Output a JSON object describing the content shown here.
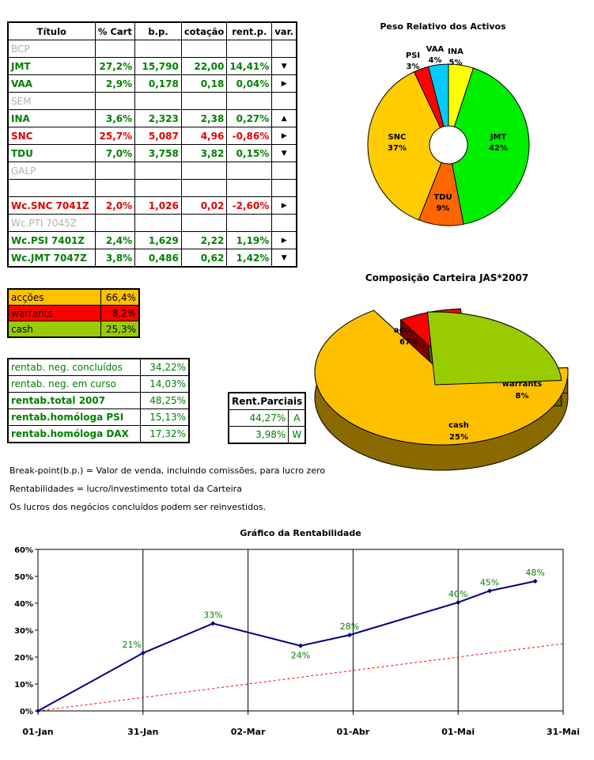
{
  "table": {
    "headers": [
      "Título",
      "% Cart",
      "b.p.",
      "cotação",
      "rent.p.",
      "var."
    ],
    "rows": [
      {
        "name": "BCP",
        "cart": "",
        "bp": "",
        "cot": "",
        "rent": "",
        "var": "",
        "style": "grey"
      },
      {
        "name": "JMT",
        "cart": "27,2%",
        "bp": "15,790",
        "cot": "22,00",
        "rent": "14,41%",
        "var": "down",
        "style": "green"
      },
      {
        "name": "VAA",
        "cart": "2,9%",
        "bp": "0,178",
        "cot": "0,18",
        "rent": "0,04%",
        "var": "right",
        "style": "green"
      },
      {
        "name": "SEM",
        "cart": "",
        "bp": "",
        "cot": "",
        "rent": "",
        "var": "",
        "style": "grey"
      },
      {
        "name": "INA",
        "cart": "3,6%",
        "bp": "2,323",
        "cot": "2,38",
        "rent": "0,27%",
        "var": "up",
        "style": "green"
      },
      {
        "name": "SNC",
        "cart": "25,7%",
        "bp": "5,087",
        "cot": "4,96",
        "rent": "-0,86%",
        "var": "right",
        "style": "red"
      },
      {
        "name": "TDU",
        "cart": "7,0%",
        "bp": "3,758",
        "cot": "3,82",
        "rent": "0,15%",
        "var": "down",
        "style": "green"
      },
      {
        "name": "GALP",
        "cart": "",
        "bp": "",
        "cot": "",
        "rent": "",
        "var": "",
        "style": "grey"
      },
      {
        "name": "",
        "cart": "",
        "bp": "",
        "cot": "",
        "rent": "",
        "var": "",
        "style": "grey"
      },
      {
        "name": "Wc.SNC 7041Z",
        "cart": "2,0%",
        "bp": "1,026",
        "cot": "0,02",
        "rent": "-2,60%",
        "var": "right",
        "style": "red"
      },
      {
        "name": "Wc.PTI 7045Z",
        "cart": "",
        "bp": "",
        "cot": "",
        "rent": "",
        "var": "",
        "style": "grey"
      },
      {
        "name": "Wc.PSI 7401Z",
        "cart": "2,4%",
        "bp": "1,629",
        "cot": "2,22",
        "rent": "1,19%",
        "var": "right",
        "style": "green"
      },
      {
        "name": "Wc.JMT 7047Z",
        "cart": "3,8%",
        "bp": "0,486",
        "cot": "0,62",
        "rent": "1,42%",
        "var": "down",
        "style": "green"
      }
    ]
  },
  "allocation": [
    {
      "label": "acções",
      "value": "66,4%",
      "color": "#ffc000"
    },
    {
      "label": "warrants",
      "value": "8,2%",
      "color": "#ff0000"
    },
    {
      "label": "cash",
      "value": "25,3%",
      "color": "#99cc00"
    }
  ],
  "rentab": [
    {
      "label": "rentab. neg. concluídos",
      "value": "34,22%",
      "bold": false
    },
    {
      "label": "rentab. neg. em curso",
      "value": "14,03%",
      "bold": false
    },
    {
      "label": "rentab.total 2007",
      "value": "48,25%",
      "bold": true
    },
    {
      "label": "rentab.homóloga PSI",
      "value": "15,13%",
      "bold": true
    },
    {
      "label": "rentab.homóloga DAX",
      "value": "17,32%",
      "bold": true
    }
  ],
  "parciais": {
    "header": "Rent.Parciais",
    "rows": [
      {
        "value": "44,27%",
        "code": "A"
      },
      {
        "value": "3,98%",
        "code": "W"
      }
    ]
  },
  "notes": {
    "n1": "Break-point(b.p.) = Valor de venda, incluindo comissões, para lucro zero",
    "n2": "Rentabilidades = lucro/investimento total da Carteira",
    "n3": "Os lucros dos negócios concluídos podem ser reinvestidos."
  },
  "chart_data": [
    {
      "type": "pie",
      "title": "Peso Relativo dos Activos",
      "slices": [
        {
          "label": "INA",
          "value": 5,
          "color": "#ffff00"
        },
        {
          "label": "JMT",
          "value": 42,
          "color": "#00ee00"
        },
        {
          "label": "TDU",
          "value": 9,
          "color": "#ff6600"
        },
        {
          "label": "SNC",
          "value": 37,
          "color": "#ffcc00"
        },
        {
          "label": "PSI",
          "value": 3,
          "color": "#ff0000"
        },
        {
          "label": "VAA",
          "value": 4,
          "color": "#00ccff"
        }
      ]
    },
    {
      "type": "pie",
      "title": "Composição Carteira JAS*2007",
      "slices": [
        {
          "label": "acções",
          "value": 67,
          "color": "#ffc000",
          "side": "#8a6a00"
        },
        {
          "label": "warrants",
          "value": 8,
          "color": "#ff0000",
          "side": "#7a0000"
        },
        {
          "label": "cash",
          "value": 25,
          "color": "#99cc00",
          "side": "#556b00"
        }
      ]
    },
    {
      "type": "line",
      "title": "Gráfico da Rentabilidade",
      "x_ticks": [
        "01-Jan",
        "31-Jan",
        "02-Mar",
        "01-Abr",
        "01-Mai",
        "31-Mai"
      ],
      "y_ticks": [
        "0%",
        "10%",
        "20%",
        "30%",
        "40%",
        "50%",
        "60%"
      ],
      "ylim": [
        0,
        60
      ],
      "series": [
        {
          "points": [
            [
              0,
              0
            ],
            [
              30,
              21.5
            ],
            [
              50,
              32.5
            ],
            [
              75,
              24.2
            ],
            [
              89,
              28.2
            ],
            [
              120,
              40.3
            ],
            [
              129,
              44.6
            ],
            [
              142,
              48.2
            ]
          ],
          "labels": [
            "",
            "21%",
            "33%",
            "24%",
            "28%",
            "40%",
            "45%",
            "48%"
          ],
          "color": "#000080"
        },
        {
          "points": [
            [
              0,
              0
            ],
            [
              150,
              25
            ]
          ],
          "color": "#ff0000",
          "dashed": true
        }
      ]
    }
  ]
}
